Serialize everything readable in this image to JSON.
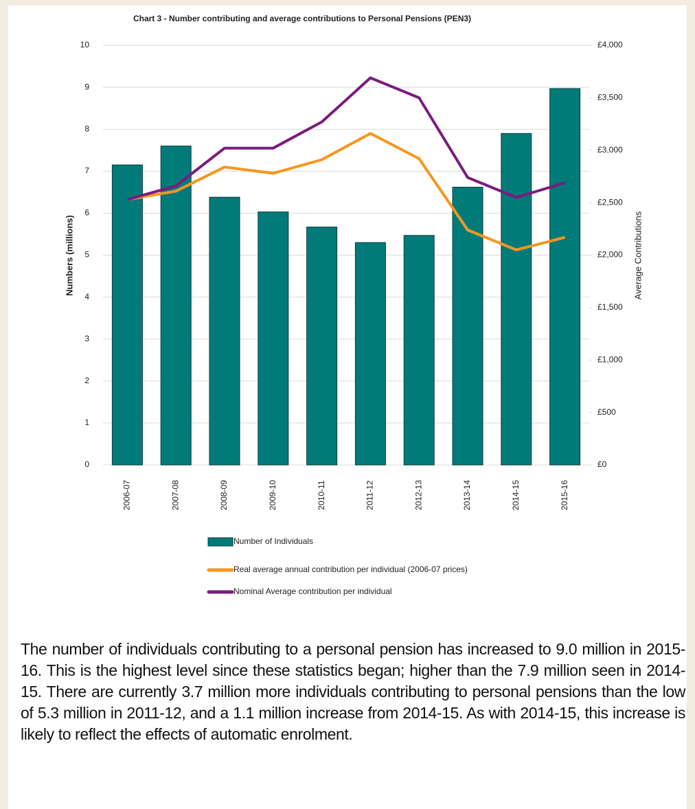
{
  "chart_data": {
    "type": "bar_line",
    "title": "Chart 3 - Number contributing and average contributions to Personal Pensions (PEN3)",
    "ylabel": "Numbers (millions)",
    "y2label": "Average Contributions",
    "categories": [
      "2006-07",
      "2007-08",
      "2008-09",
      "2009-10",
      "2010-11",
      "2011-12",
      "2012-13",
      "2013-14",
      "2014-15",
      "2015-16"
    ],
    "series": [
      {
        "name": "Number of Individuals",
        "type": "bar",
        "color": "#007b7a",
        "values": [
          7.15,
          7.6,
          6.38,
          6.03,
          5.67,
          5.3,
          5.47,
          6.62,
          7.9,
          8.97
        ]
      },
      {
        "name": "Real average annual contribution per individual (2006-07 prices)",
        "type": "line",
        "axis": "y2",
        "color": "#f7961e",
        "values": [
          2530,
          2610,
          2840,
          2780,
          2910,
          3160,
          2920,
          2240,
          2050,
          2170
        ]
      },
      {
        "name": "Nominal Average contribution per individual",
        "type": "line",
        "axis": "y2",
        "color": "#7b1b7e",
        "values": [
          2530,
          2660,
          3020,
          3020,
          3270,
          3690,
          3500,
          2740,
          2550,
          2690
        ]
      }
    ],
    "ylim": [
      0,
      10
    ],
    "yticks": [
      0,
      1,
      2,
      3,
      4,
      5,
      6,
      7,
      8,
      9,
      10
    ],
    "y2lim": [
      0,
      4000
    ],
    "y2ticks": [
      {
        "value": 0,
        "label": "£0"
      },
      {
        "value": 500,
        "label": "£500"
      },
      {
        "value": 1000,
        "label": "£1,000"
      },
      {
        "value": 1500,
        "label": "£1,500"
      },
      {
        "value": 2000,
        "label": "£2,000"
      },
      {
        "value": 2500,
        "label": "£2,500"
      },
      {
        "value": 3000,
        "label": "£3,000"
      },
      {
        "value": 3500,
        "label": "£3,500"
      },
      {
        "value": 4000,
        "label": "£4,000"
      }
    ],
    "grid": true
  },
  "text": "The number of individuals contributing to a personal pension has increased to 9.0 million in 2015-16. This is the highest level since these statistics began; higher than the 7.9 million seen in 2014-15. There are currently 3.7 million more individuals contributing to personal pensions than the low of 5.3 million in 2011-12, and a 1.1 million increase from 2014-15. As with 2014-15, this increase is likely to reflect the effects of automatic enrolment."
}
